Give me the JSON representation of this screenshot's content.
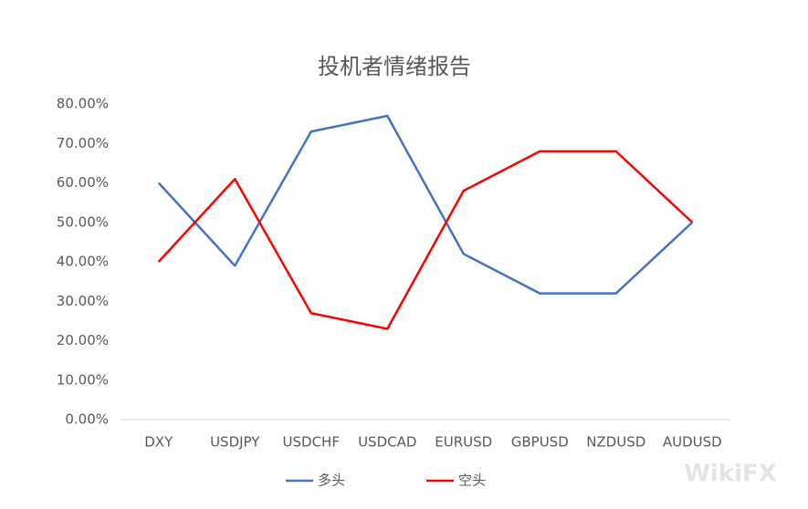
{
  "chart_data": {
    "type": "line",
    "title": "投机者情绪报告",
    "categories": [
      "DXY",
      "USDJPY",
      "USDCHF",
      "USDCAD",
      "EURUSD",
      "GBPUSD",
      "NZDUSD",
      "AUDUSD"
    ],
    "series": [
      {
        "name": "多头",
        "color": "#4472c4",
        "values": [
          60,
          39,
          73,
          77,
          42,
          32,
          32,
          50
        ]
      },
      {
        "name": "空头",
        "color": "#ff0000",
        "values": [
          40,
          61,
          27,
          23,
          58,
          68,
          68,
          50
        ]
      }
    ],
    "ylim": [
      0,
      80
    ],
    "yticks": [
      {
        "value": 0,
        "label": "0.00%"
      },
      {
        "value": 10,
        "label": "10.00%"
      },
      {
        "value": 20,
        "label": "20.00%"
      },
      {
        "value": 30,
        "label": "30.00%"
      },
      {
        "value": 40,
        "label": "40.00%"
      },
      {
        "value": 50,
        "label": "50.00%"
      },
      {
        "value": 60,
        "label": "60.00%"
      },
      {
        "value": 70,
        "label": "70.00%"
      },
      {
        "value": 80,
        "label": "80.00%"
      }
    ],
    "grid": false,
    "legend": "bottom",
    "watermark": "WikiFX"
  }
}
